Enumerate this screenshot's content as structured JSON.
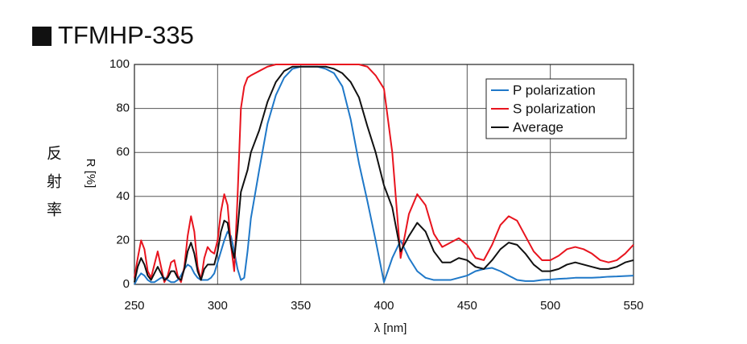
{
  "chart_data": {
    "type": "line",
    "title": "TFMHP-335",
    "side_label": "反射率",
    "y_label": "R [%]",
    "x_label": "λ [nm]",
    "xlim": [
      250,
      550
    ],
    "xticks": [
      250,
      300,
      350,
      400,
      450,
      500,
      550
    ],
    "ylim": [
      0,
      100
    ],
    "yticks": [
      0,
      20,
      40,
      60,
      80,
      100
    ],
    "grid": true,
    "legend": "upper right",
    "x": [
      250,
      252,
      254,
      256,
      258,
      260,
      262,
      264,
      266,
      268,
      270,
      272,
      274,
      276,
      278,
      280,
      282,
      284,
      286,
      288,
      290,
      292,
      294,
      296,
      298,
      300,
      302,
      304,
      306,
      308,
      310,
      312,
      314,
      316,
      318,
      320,
      325,
      330,
      335,
      340,
      345,
      350,
      355,
      360,
      365,
      370,
      375,
      380,
      385,
      390,
      395,
      400,
      405,
      410,
      415,
      420,
      425,
      430,
      435,
      440,
      445,
      450,
      455,
      460,
      465,
      470,
      475,
      480,
      485,
      490,
      495,
      500,
      505,
      510,
      515,
      520,
      525,
      530,
      535,
      540,
      545,
      550
    ],
    "series": [
      {
        "name": "P polarization",
        "color": "#1f78c8",
        "values": [
          0,
          3,
          5,
          4,
          2,
          1,
          1,
          2,
          3,
          3,
          2,
          1,
          1,
          2,
          4,
          7,
          9,
          8,
          5,
          3,
          2,
          2,
          2,
          3,
          5,
          10,
          15,
          20,
          24,
          22,
          15,
          7,
          2,
          3,
          15,
          30,
          52,
          73,
          86,
          94,
          98,
          99,
          99,
          99,
          98,
          96,
          90,
          75,
          55,
          38,
          20,
          1,
          12,
          20,
          12,
          6,
          3,
          2,
          2,
          2,
          3,
          4,
          6,
          7,
          7.5,
          6,
          4,
          2,
          1.5,
          1.5,
          2,
          2.2,
          2.5,
          2.7,
          3,
          3,
          3,
          3.2,
          3.5,
          3.6,
          3.8,
          4
        ]
      },
      {
        "name": "S polarization",
        "color": "#e8141e",
        "values": [
          3,
          12,
          20,
          16,
          6,
          3,
          9,
          15,
          8,
          1,
          4,
          10,
          11,
          4,
          1,
          8,
          22,
          31,
          24,
          8,
          2,
          12,
          17,
          15,
          14,
          20,
          33,
          41,
          36,
          18,
          6,
          40,
          80,
          90,
          94,
          95,
          97,
          99,
          100,
          100,
          100,
          100,
          100,
          100,
          100,
          100,
          100,
          100,
          100,
          99,
          95,
          89,
          60,
          12,
          32,
          41,
          36,
          23,
          17,
          19,
          21,
          18,
          12,
          11,
          18,
          27,
          31,
          29,
          22,
          15,
          11,
          11,
          13,
          16,
          17,
          16,
          14,
          11,
          10,
          11,
          14,
          18
        ]
      },
      {
        "name": "Average",
        "color": "#111111",
        "values": [
          1,
          8,
          12,
          9,
          4,
          2,
          5,
          8,
          5,
          2,
          3,
          6,
          6,
          3,
          2,
          7,
          15,
          19,
          14,
          6,
          2,
          7,
          9,
          9,
          9,
          15,
          24,
          29,
          28,
          18,
          12,
          25,
          42,
          47,
          52,
          60,
          70,
          83,
          92,
          97,
          99,
          99,
          99,
          99,
          99,
          98,
          96,
          92,
          85,
          72,
          60,
          45,
          35,
          15,
          22,
          28,
          24,
          15,
          10,
          10,
          12,
          11,
          8,
          7,
          11,
          16,
          19,
          18,
          14,
          9,
          6,
          6,
          7,
          9,
          10,
          9,
          8,
          7,
          7,
          8,
          10,
          11
        ]
      }
    ]
  }
}
